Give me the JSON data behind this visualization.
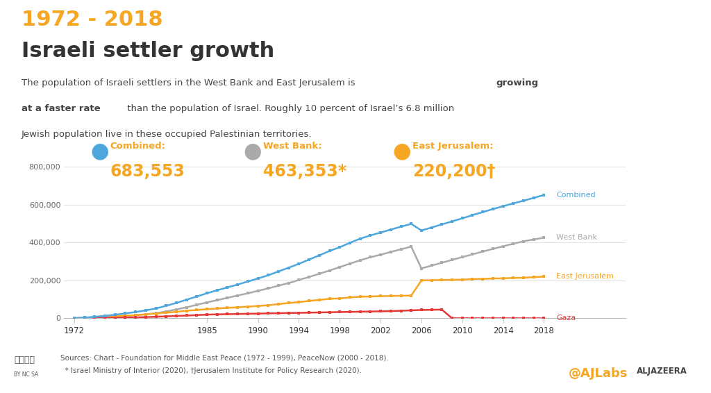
{
  "title_year": "1972 - 2018",
  "title_main": "Israeli settler growth",
  "subtitle_parts": [
    {
      "text": "The population of Israeli settlers in the West Bank and East Jerusalem is ",
      "bold": false
    },
    {
      "text": "growing\nat a faster rate",
      "bold": true
    },
    {
      "text": " than the population of Israel. Roughly 10 percent of Israel’s 6.8 million\nJewish population live in these occupied Palestinian territories.",
      "bold": false
    }
  ],
  "bg_color": "#ffffff",
  "footer_bg": "#eeeeee",
  "years": [
    1972,
    1973,
    1974,
    1975,
    1976,
    1977,
    1978,
    1979,
    1980,
    1981,
    1982,
    1983,
    1984,
    1985,
    1986,
    1987,
    1988,
    1989,
    1990,
    1991,
    1992,
    1993,
    1994,
    1995,
    1996,
    1997,
    1998,
    1999,
    2000,
    2001,
    2002,
    2003,
    2004,
    2005,
    2006,
    2007,
    2008,
    2009,
    2010,
    2011,
    2012,
    2013,
    2014,
    2015,
    2016,
    2017,
    2018
  ],
  "combined": [
    1500,
    4000,
    8000,
    13000,
    19000,
    26000,
    33000,
    42000,
    52000,
    66000,
    81000,
    98000,
    115000,
    132000,
    148000,
    163000,
    178000,
    194000,
    210000,
    227000,
    247000,
    267000,
    287000,
    310000,
    332000,
    355000,
    375000,
    398000,
    420000,
    437000,
    452000,
    468000,
    483000,
    498000,
    463000,
    479000,
    495000,
    511000,
    527000,
    544000,
    560000,
    576000,
    591000,
    606000,
    620000,
    635000,
    650000
  ],
  "west_bank": [
    500,
    1500,
    3500,
    6000,
    9000,
    12500,
    16500,
    21000,
    27000,
    36000,
    47000,
    58000,
    71000,
    84000,
    96000,
    108000,
    120000,
    132000,
    145000,
    158000,
    172000,
    186000,
    202000,
    218000,
    235000,
    252000,
    270000,
    288000,
    306000,
    322000,
    335000,
    350000,
    364000,
    378000,
    263000,
    278000,
    293000,
    308000,
    323000,
    337000,
    352000,
    366000,
    380000,
    393000,
    406000,
    416000,
    425000
  ],
  "east_jerusalem": [
    1000,
    2500,
    4500,
    7000,
    10000,
    13500,
    16500,
    21000,
    25000,
    30000,
    34000,
    40000,
    44000,
    48000,
    52000,
    55000,
    58000,
    62000,
    65000,
    69000,
    75000,
    81000,
    85000,
    92000,
    97000,
    103000,
    105000,
    110000,
    114000,
    115000,
    117000,
    118000,
    119000,
    120000,
    200000,
    201000,
    202000,
    203000,
    204000,
    207000,
    208000,
    210000,
    211000,
    213000,
    214000,
    217000,
    220000
  ],
  "gaza": [
    500,
    1000,
    1500,
    2000,
    3000,
    4000,
    5000,
    6500,
    8500,
    10500,
    12500,
    14500,
    17000,
    19500,
    21000,
    22000,
    23000,
    24000,
    25000,
    26000,
    27000,
    28000,
    29000,
    30000,
    31000,
    32000,
    33000,
    34000,
    35000,
    36000,
    37000,
    38000,
    40000,
    42000,
    44000,
    45000,
    46000,
    300,
    200,
    100,
    50,
    50,
    50,
    50,
    50,
    50,
    50
  ],
  "line_colors": {
    "combined": "#4DA6DC",
    "west_bank": "#AAAAAA",
    "east_jerusalem": "#F5A623",
    "gaza": "#E53935"
  },
  "legend_labels": {
    "combined": "Combined",
    "west_bank": "West Bank",
    "east_jerusalem": "East Jerusalem",
    "gaza": "Gaza"
  },
  "legend_values": {
    "combined": "683,553",
    "west_bank": "463,353*",
    "east_jerusalem": "220,200†"
  },
  "legend_icon_colors": {
    "combined": "#4DA6DC",
    "west_bank": "#AAAAAA",
    "east_jerusalem": "#F5A623"
  },
  "yticks": [
    0,
    200000,
    400000,
    600000,
    800000
  ],
  "ytick_labels": [
    "0",
    "200,000",
    "400,000",
    "600,000",
    "800,000"
  ],
  "xtick_years": [
    1972,
    1985,
    1990,
    1994,
    1998,
    2002,
    2006,
    2010,
    2014,
    2018
  ],
  "xtick_labels": [
    "1972",
    "1985",
    "1990",
    "1994",
    "1998",
    "2002",
    "2006",
    "2010",
    "2014",
    "2018"
  ],
  "source_line1": "Sources: Chart - Foundation for Middle East Peace (1972 - 1999), PeaceNow (2000 - 2018).",
  "source_line2": "  * Israel Ministry of Interior (2020), †Jerusalem Institute for Policy Research (2020).",
  "title_year_color": "#F5A623",
  "title_main_color": "#333333",
  "subtitle_color": "#444444",
  "ajlabs_color": "#F5A623",
  "aljazeera_color": "#444444"
}
